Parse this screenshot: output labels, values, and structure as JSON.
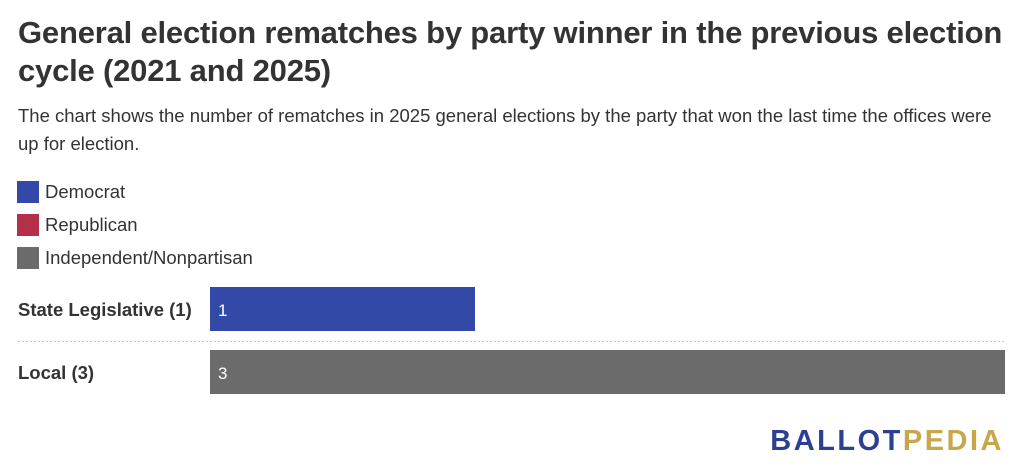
{
  "title": "General election rematches by party winner in the previous election cycle (2021 and 2025)",
  "subtitle": "The chart shows the number of rematches in 2025 general elections by the party that won the last time the offices were up for election.",
  "legend": [
    {
      "label": "Democrat",
      "color": "#3349a8"
    },
    {
      "label": "Republican",
      "color": "#b43049"
    },
    {
      "label": "Independent/Nonpartisan",
      "color": "#6b6b6b"
    }
  ],
  "chart_data": {
    "type": "bar",
    "orientation": "horizontal",
    "categories": [
      "State Legislative (1)",
      "Local (3)"
    ],
    "series": [
      {
        "name": "Democrat",
        "values": [
          1,
          0
        ]
      },
      {
        "name": "Republican",
        "values": [
          0,
          0
        ]
      },
      {
        "name": "Independent/Nonpartisan",
        "values": [
          0,
          3
        ]
      }
    ],
    "data_labels": [
      "1",
      "3"
    ],
    "xlim": [
      0,
      3
    ],
    "grid": false
  },
  "logo": {
    "part1": "BALLOT",
    "part2": "PEDIA"
  }
}
